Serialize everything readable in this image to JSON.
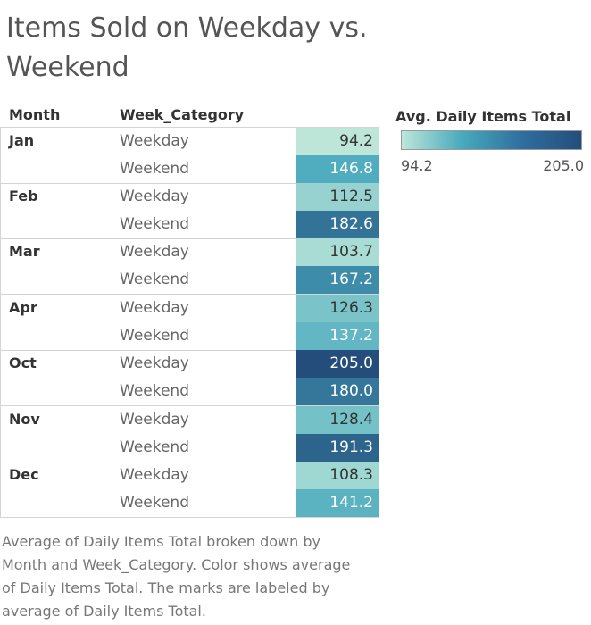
{
  "title": "Items Sold on Weekday vs. Weekend",
  "headers": {
    "month": "Month",
    "week_category": "Week_Category"
  },
  "legend": {
    "title": "Avg. Daily Items Total",
    "min_label": "94.2",
    "max_label": "205.0"
  },
  "caption": "Average of Daily Items Total broken down by Month and Week_Category.  Color shows average of Daily Items Total. The marks are labeled by average of Daily Items Total.",
  "colors": {
    "low": "#bde6d9",
    "mid": "#49aabe",
    "high": "#244d7c"
  },
  "chart_data": {
    "type": "heatmap",
    "title": "Items Sold on Weekday vs. Weekend",
    "row_dimension": "Month",
    "sub_dimension": "Week_Category",
    "measure": "Avg. Daily Items Total",
    "color_range": [
      94.2,
      205.0
    ],
    "categories": [
      "Jan",
      "Feb",
      "Mar",
      "Apr",
      "Oct",
      "Nov",
      "Dec"
    ],
    "series": [
      {
        "name": "Weekday",
        "values": [
          94.2,
          112.5,
          103.7,
          126.3,
          205.0,
          128.4,
          108.3
        ]
      },
      {
        "name": "Weekend",
        "values": [
          146.8,
          182.6,
          167.2,
          137.2,
          180.0,
          191.3,
          141.2
        ]
      }
    ],
    "value_labels": [
      [
        "94.2",
        "146.8"
      ],
      [
        "112.5",
        "182.6"
      ],
      [
        "103.7",
        "167.2"
      ],
      [
        "126.3",
        "137.2"
      ],
      [
        "205.0",
        "180.0"
      ],
      [
        "128.4",
        "191.3"
      ],
      [
        "108.3",
        "141.2"
      ]
    ]
  }
}
